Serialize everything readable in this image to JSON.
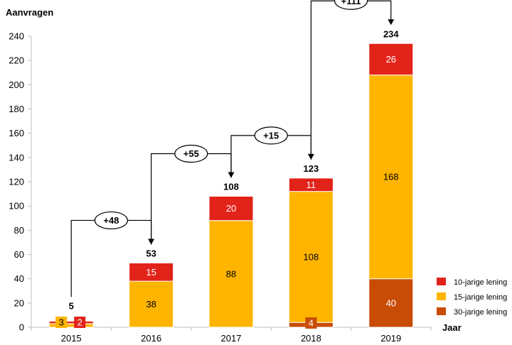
{
  "chart_data": {
    "type": "bar",
    "stacked": true,
    "ylabel": "Aanvragen",
    "xlabel": "Jaar",
    "ylim": [
      0,
      240
    ],
    "yticks": [
      0,
      20,
      40,
      60,
      80,
      100,
      120,
      140,
      160,
      180,
      200,
      220,
      240
    ],
    "categories": [
      "2015",
      "2016",
      "2017",
      "2018",
      "2019"
    ],
    "series": [
      {
        "name": "30-jarige lening",
        "color": "#C94C06",
        "values": [
          0,
          0,
          0,
          4,
          40
        ]
      },
      {
        "name": "15-jarige lening",
        "color": "#FFB400",
        "values": [
          3,
          38,
          88,
          108,
          168
        ]
      },
      {
        "name": "10-jarige lening",
        "color": "#E2231A",
        "values": [
          2,
          15,
          20,
          11,
          26
        ]
      }
    ],
    "totals": [
      5,
      53,
      108,
      123,
      234
    ],
    "differences": [
      "+48",
      "+55",
      "+15",
      "+111"
    ],
    "legend": [
      "10-jarige lening",
      "15-jarige lening",
      "30-jarige lening"
    ],
    "legend_position": "bottom-right",
    "grid": false
  }
}
